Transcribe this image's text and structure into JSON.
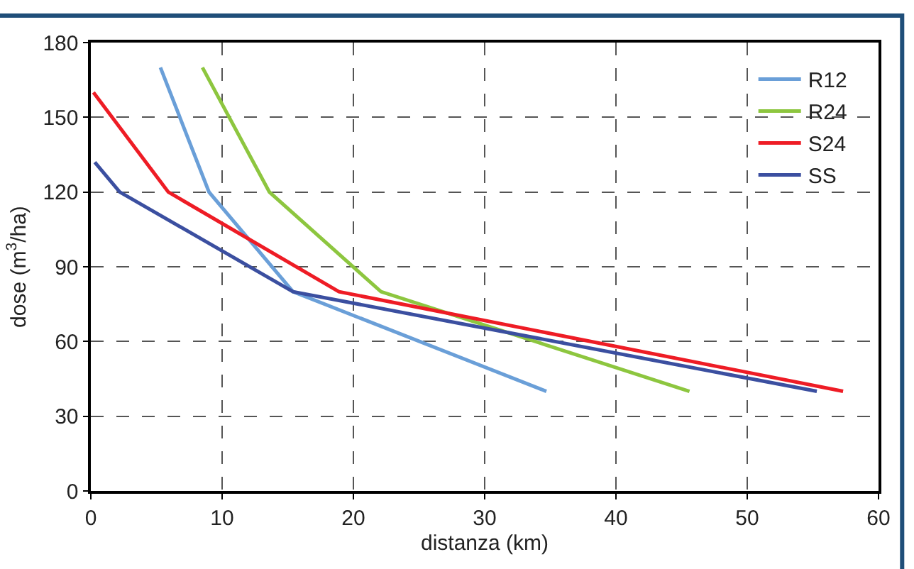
{
  "chart_data": {
    "type": "line",
    "xlabel": "distanza (km)",
    "ylabel": "dose (m$^{3}$/ha)",
    "xlim": [
      0,
      60
    ],
    "xticks": [
      0,
      10,
      20,
      30,
      40,
      50,
      60
    ],
    "ylim": [
      0,
      180
    ],
    "yticks": [
      0,
      30,
      60,
      90,
      120,
      150,
      180
    ],
    "grid": true,
    "legend": "top right",
    "marker": "none",
    "line_style": "solid",
    "series": [
      {
        "name": "R12",
        "color": "#6a9fd8",
        "x": [
          5.3,
          9,
          15.4,
          34.7
        ],
        "values": [
          170,
          120,
          80,
          40
        ]
      },
      {
        "name": "R24",
        "color": "#8dc63f",
        "x": [
          8.5,
          13.6,
          22.1,
          45.6
        ],
        "values": [
          170,
          120,
          80,
          40
        ]
      },
      {
        "name": "S24",
        "color": "#ee1c25",
        "x": [
          0.2,
          5.9,
          18.9,
          57.3
        ],
        "values": [
          160,
          120,
          80,
          40
        ]
      },
      {
        "name": "SS",
        "color": "#3b4fa0",
        "x": [
          0.3,
          2.2,
          15.4,
          55.3
        ],
        "values": [
          132,
          120,
          80,
          40
        ]
      }
    ]
  }
}
